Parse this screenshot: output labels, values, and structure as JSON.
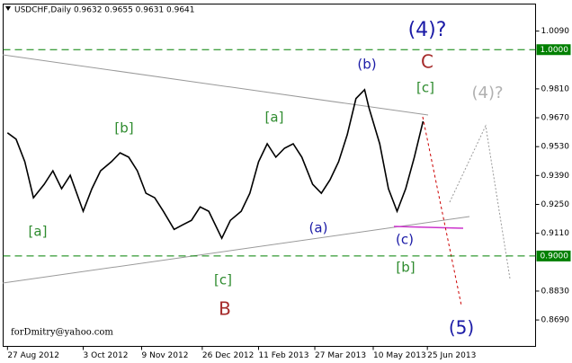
{
  "chart_data": {
    "type": "line",
    "title": "USDCHF,Daily  0.9632 0.9655 0.9631 0.9641",
    "watermark": "forDmitry@yahoo.com",
    "x": [
      0,
      4,
      8,
      12,
      17,
      21,
      25,
      29,
      35,
      39,
      43,
      48,
      52,
      56,
      60,
      64,
      68,
      72,
      77,
      81,
      85,
      89,
      93,
      99,
      103,
      108,
      112,
      116,
      120,
      124,
      128,
      132,
      136,
      141,
      145,
      149,
      153,
      157,
      161,
      165,
      167,
      172,
      176,
      180,
      184,
      188,
      192
    ],
    "values": [
      0.9597,
      0.9566,
      0.9457,
      0.9282,
      0.9348,
      0.9413,
      0.9326,
      0.9391,
      0.9217,
      0.9326,
      0.9413,
      0.9457,
      0.95,
      0.9479,
      0.9413,
      0.9304,
      0.9282,
      0.9217,
      0.9129,
      0.9151,
      0.9173,
      0.9238,
      0.9217,
      0.9086,
      0.9173,
      0.9217,
      0.9304,
      0.9457,
      0.9544,
      0.9479,
      0.9522,
      0.9544,
      0.9479,
      0.9348,
      0.9304,
      0.9369,
      0.9457,
      0.9588,
      0.9763,
      0.9806,
      0.9719,
      0.9544,
      0.9326,
      0.9217,
      0.9326,
      0.9479,
      0.9653
    ],
    "color": "#000000",
    "xlim": [
      -2,
      244
    ],
    "ylim": [
      0.8562,
      1.0221
    ],
    "xticks": [
      {
        "value": 0,
        "label": "27 Aug 2012"
      },
      {
        "value": 35,
        "label": "3 Oct 2012"
      },
      {
        "value": 62,
        "label": "9 Nov 2012"
      },
      {
        "value": 90,
        "label": "26 Dec 2012"
      },
      {
        "value": 116,
        "label": "11 Feb 2013"
      },
      {
        "value": 142,
        "label": "27 Mar 2013"
      },
      {
        "value": 169,
        "label": "10 May 2013"
      },
      {
        "value": 194,
        "label": "25 Jun 2013"
      }
    ],
    "yticks": [
      {
        "value": 1.009,
        "label": "1.0090"
      },
      {
        "value": 0.981,
        "label": "0.9810"
      },
      {
        "value": 0.967,
        "label": "0.9670"
      },
      {
        "value": 0.953,
        "label": "0.9530"
      },
      {
        "value": 0.939,
        "label": "0.9390"
      },
      {
        "value": 0.925,
        "label": "0.9250"
      },
      {
        "value": 0.911,
        "label": "0.9110"
      },
      {
        "value": 0.883,
        "label": "0.8830"
      },
      {
        "value": 0.869,
        "label": "0.8690"
      }
    ],
    "hlines": [
      {
        "value": 1.0,
        "label": "1.0000",
        "color": "#008000"
      },
      {
        "value": 0.9,
        "label": "0.9000",
        "color": "#008000"
      }
    ],
    "annotations": [
      {
        "text": "(4)?",
        "color": "#1a1aa6"
      },
      {
        "text": "C",
        "color": "#a52a2a"
      },
      {
        "text": "(b)",
        "color": "#1a1aa6"
      },
      {
        "text": "[c]",
        "color": "#2e8b2e"
      },
      {
        "text": "(4)?",
        "color": "#b0b0b0"
      },
      {
        "text": "[b]",
        "color": "#2e8b2e"
      },
      {
        "text": "[a]",
        "color": "#2e8b2e"
      },
      {
        "text": "[a]",
        "color": "#2e8b2e"
      },
      {
        "text": "(a)",
        "color": "#1a1aa6"
      },
      {
        "text": "(c)",
        "color": "#1a1aa6"
      },
      {
        "text": "[b]",
        "color": "#2e8b2e"
      },
      {
        "text": "[c]",
        "color": "#2e8b2e"
      },
      {
        "text": "B",
        "color": "#a52a2a"
      },
      {
        "text": "(5)",
        "color": "#1a1aa6"
      }
    ]
  }
}
